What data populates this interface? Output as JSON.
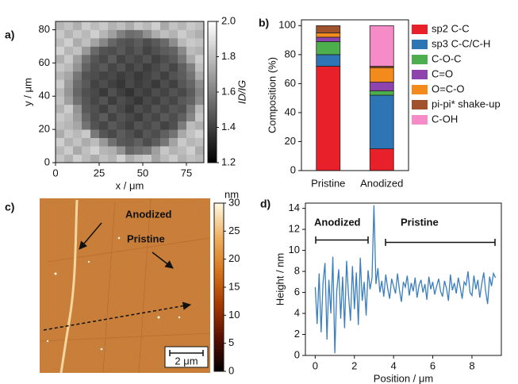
{
  "chart_data": [
    {
      "type": "heatmap",
      "panel_label": "a)",
      "xlabel": "x / μm",
      "ylabel": "y / μm",
      "colorbar_label": "ID/IG",
      "xlim": [
        0,
        85
      ],
      "ylim": [
        0,
        85
      ],
      "xticks": [
        0,
        25,
        50,
        75
      ],
      "yticks": [
        0,
        20,
        40,
        60,
        80
      ],
      "zlim": [
        1.2,
        2.0
      ],
      "zticks": [
        1.2,
        1.4,
        1.6,
        1.8,
        {
          "value": 2,
          "label": "2.0"
        }
      ],
      "colormap": [
        "#000000",
        "#ffffff"
      ],
      "z": [
        [
          1.82,
          1.76,
          1.85,
          1.79,
          1.74,
          1.81,
          1.77,
          1.86,
          1.75,
          1.8,
          1.83,
          1.72,
          1.79,
          1.84,
          1.76,
          1.81,
          1.78
        ],
        [
          1.78,
          1.84,
          1.73,
          1.8,
          1.86,
          1.77,
          1.75,
          1.66,
          1.52,
          1.55,
          1.58,
          1.7,
          1.82,
          1.76,
          1.79,
          1.85,
          1.74
        ],
        [
          1.85,
          1.76,
          1.81,
          1.74,
          1.79,
          1.68,
          1.55,
          1.48,
          1.46,
          1.5,
          1.44,
          1.49,
          1.57,
          1.71,
          1.83,
          1.77,
          1.8
        ],
        [
          1.74,
          1.82,
          1.78,
          1.83,
          1.58,
          1.47,
          1.43,
          1.49,
          1.45,
          1.41,
          1.47,
          1.44,
          1.5,
          1.56,
          1.73,
          1.81,
          1.86
        ],
        [
          1.8,
          1.77,
          1.72,
          1.56,
          1.46,
          1.42,
          1.48,
          1.44,
          1.4,
          1.46,
          1.43,
          1.47,
          1.41,
          1.45,
          1.59,
          1.79,
          1.75
        ],
        [
          1.83,
          1.79,
          1.69,
          1.52,
          1.44,
          1.49,
          1.41,
          1.46,
          1.43,
          1.39,
          1.45,
          1.42,
          1.48,
          1.44,
          1.5,
          1.62,
          1.82
        ],
        [
          1.76,
          1.84,
          1.66,
          1.48,
          1.45,
          1.4,
          1.47,
          1.43,
          1.38,
          1.44,
          1.41,
          1.46,
          1.42,
          1.47,
          1.45,
          1.58,
          1.78
        ],
        [
          1.81,
          1.7,
          1.55,
          1.47,
          1.42,
          1.46,
          1.39,
          1.44,
          1.41,
          1.37,
          1.43,
          1.4,
          1.45,
          1.42,
          1.48,
          1.51,
          1.64
        ],
        [
          1.78,
          1.67,
          1.52,
          1.45,
          1.43,
          1.38,
          1.45,
          1.4,
          1.36,
          1.42,
          1.39,
          1.44,
          1.41,
          1.46,
          1.43,
          1.49,
          1.61
        ],
        [
          1.84,
          1.69,
          1.54,
          1.48,
          1.41,
          1.44,
          1.4,
          1.37,
          1.43,
          1.39,
          1.42,
          1.38,
          1.44,
          1.4,
          1.47,
          1.52,
          1.65
        ],
        [
          1.77,
          1.72,
          1.57,
          1.46,
          1.44,
          1.41,
          1.43,
          1.39,
          1.42,
          1.38,
          1.41,
          1.45,
          1.4,
          1.46,
          1.49,
          1.56,
          1.74
        ],
        [
          1.82,
          1.78,
          1.66,
          1.51,
          1.45,
          1.48,
          1.42,
          1.46,
          1.4,
          1.44,
          1.39,
          1.43,
          1.47,
          1.42,
          1.5,
          1.6,
          1.8
        ],
        [
          1.75,
          1.83,
          1.7,
          1.55,
          1.47,
          1.43,
          1.49,
          1.41,
          1.45,
          1.42,
          1.46,
          1.4,
          1.44,
          1.48,
          1.57,
          1.73,
          1.84
        ],
        [
          1.86,
          1.77,
          1.81,
          1.68,
          1.53,
          1.46,
          1.44,
          1.48,
          1.43,
          1.47,
          1.41,
          1.45,
          1.49,
          1.51,
          1.63,
          1.79,
          1.76
        ],
        [
          1.79,
          1.85,
          1.74,
          1.8,
          1.71,
          1.62,
          1.52,
          1.47,
          1.45,
          1.49,
          1.44,
          1.48,
          1.53,
          1.64,
          1.78,
          1.83,
          1.81
        ],
        [
          1.83,
          1.76,
          1.82,
          1.78,
          1.85,
          1.77,
          1.7,
          1.6,
          1.54,
          1.56,
          1.65,
          1.74,
          1.8,
          1.76,
          1.84,
          1.79,
          1.75
        ],
        [
          1.77,
          1.81,
          1.75,
          1.84,
          1.79,
          1.83,
          1.76,
          1.8,
          1.74,
          1.82,
          1.78,
          1.85,
          1.73,
          1.81,
          1.77,
          1.83,
          1.8
        ]
      ]
    },
    {
      "type": "bar",
      "stacked": true,
      "panel_label": "b)",
      "ylabel": "Composition (%)",
      "legend": "outside right",
      "categories": [
        "Pristine",
        "Anodized"
      ],
      "ylim": [
        0,
        104
      ],
      "yticks": [
        0,
        20,
        40,
        60,
        80,
        100
      ],
      "series": [
        {
          "name": "sp2 C-C",
          "color": "#e8202a",
          "values": [
            72,
            15
          ]
        },
        {
          "name": "sp3 C-C/C-H",
          "color": "#2e75b6",
          "values": [
            8,
            37
          ]
        },
        {
          "name": "C-O-C",
          "color": "#4cae4c",
          "values": [
            9,
            3
          ]
        },
        {
          "name": "C=O",
          "color": "#8e44ad",
          "values": [
            3,
            6
          ]
        },
        {
          "name": "O=C-O",
          "color": "#f28a1c",
          "values": [
            3,
            10
          ]
        },
        {
          "name": "pi-pi* shake-up",
          "color": "#a0522d",
          "values": [
            5,
            1
          ]
        },
        {
          "name": "C-OH",
          "color": "#f58cc8",
          "values": [
            0,
            28
          ]
        }
      ]
    },
    {
      "type": "image",
      "panel_label": "c)",
      "colorbar_label": "nm",
      "annotations": [
        "Anodized",
        "Pristine"
      ],
      "scale_bar": "2 μm",
      "zlim": [
        0,
        30
      ],
      "zticks": [
        0,
        5,
        10,
        15,
        20,
        25,
        30
      ],
      "colormap": [
        "#000000",
        "#5a0f00",
        "#a83a00",
        "#d6761e",
        "#f0b060",
        "#fff8e0"
      ]
    },
    {
      "type": "line",
      "panel_label": "d)",
      "xlabel": "Position / μm",
      "ylabel": "Height / nm",
      "annotations": [
        "Anodized",
        "Pristine"
      ],
      "xlim": [
        -0.5,
        9.5
      ],
      "ylim": [
        0,
        14.5
      ],
      "xticks": [
        0,
        2,
        4,
        6,
        8
      ],
      "yticks": [
        0,
        2,
        4,
        6,
        8,
        10,
        12,
        14
      ],
      "series": [
        {
          "color": "#3a7ebf",
          "x": [
            0,
            0.1,
            0.2,
            0.3,
            0.4,
            0.5,
            0.6,
            0.7,
            0.8,
            0.9,
            1,
            1.1,
            1.2,
            1.3,
            1.4,
            1.5,
            1.6,
            1.7,
            1.8,
            1.9,
            2,
            2.1,
            2.2,
            2.3,
            2.4,
            2.5,
            2.6,
            2.7,
            2.8,
            2.9,
            3,
            3.1,
            3.2,
            3.3,
            3.4,
            3.5,
            3.6,
            3.7,
            3.8,
            3.9,
            4,
            4.1,
            4.2,
            4.3,
            4.4,
            4.5,
            4.6,
            4.7,
            4.8,
            4.9,
            5,
            5.1,
            5.2,
            5.3,
            5.4,
            5.5,
            5.6,
            5.7,
            5.8,
            5.9,
            6,
            6.1,
            6.2,
            6.3,
            6.4,
            6.5,
            6.6,
            6.7,
            6.8,
            6.9,
            7,
            7.1,
            7.2,
            7.3,
            7.4,
            7.5,
            7.6,
            7.7,
            7.8,
            7.9,
            8,
            8.1,
            8.2,
            8.3,
            8.4,
            8.5,
            8.6,
            8.7,
            8.8,
            8.9,
            9,
            9.1,
            9.2
          ],
          "values": [
            6.5,
            3.0,
            7.8,
            2.2,
            6.9,
            8.8,
            1.5,
            7.2,
            4.0,
            9.4,
            0.2,
            6.1,
            8.2,
            3.5,
            7.5,
            2.6,
            9.0,
            5.8,
            3.3,
            8.5,
            4.4,
            7.9,
            2.9,
            9.3,
            5.2,
            7.0,
            3.8,
            8.1,
            6.3,
            7.4,
            14.3,
            6.8,
            8.3,
            6.0,
            7.1,
            5.6,
            7.7,
            6.4,
            5.4,
            7.3,
            6.6,
            5.9,
            7.8,
            6.2,
            5.1,
            7.0,
            6.5,
            7.6,
            5.7,
            6.9,
            6.1,
            7.4,
            5.5,
            6.7,
            7.2,
            6.0,
            6.8,
            5.3,
            7.5,
            6.3,
            7.0,
            5.8,
            6.6,
            7.3,
            6.1,
            5.6,
            7.1,
            6.4,
            5.2,
            7.7,
            6.2,
            6.9,
            5.9,
            7.4,
            6.5,
            5.4,
            7.0,
            6.7,
            8.0,
            6.0,
            5.7,
            7.6,
            6.3,
            7.2,
            5.5,
            6.8,
            7.9,
            6.1,
            4.9,
            7.5,
            6.6,
            7.8,
            7.4
          ]
        }
      ]
    }
  ]
}
